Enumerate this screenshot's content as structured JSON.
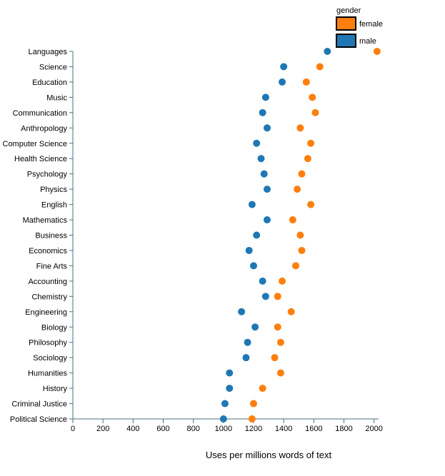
{
  "chart_data": {
    "type": "scatter",
    "title": "",
    "xlabel": "Uses per millions words of text",
    "ylabel": "",
    "xlim": [
      0,
      2030
    ],
    "x_ticks": [
      0,
      200,
      400,
      600,
      800,
      1000,
      1200,
      1400,
      1600,
      1800,
      2000
    ],
    "grid": false,
    "legend": {
      "title": "gender",
      "placement": "top-right",
      "entries": [
        "female",
        "male"
      ]
    },
    "categories": [
      "Languages",
      "Science",
      "Education",
      "Music",
      "Communication",
      "Anthropology",
      "Computer Science",
      "Health Science",
      "Psychology",
      "Physics",
      "English",
      "Mathematics",
      "Business",
      "Economics",
      "Fine Arts",
      "Accounting",
      "Chemistry",
      "Engineering",
      "Biology",
      "Philosophy",
      "Sociology",
      "Humanities",
      "History",
      "Criminal Justice",
      "Political Science"
    ],
    "series": [
      {
        "name": "female",
        "color": "#ff7f0e",
        "values": [
          2020,
          1640,
          1550,
          1590,
          1610,
          1510,
          1580,
          1560,
          1520,
          1490,
          1580,
          1460,
          1510,
          1520,
          1480,
          1390,
          1360,
          1450,
          1360,
          1380,
          1340,
          1380,
          1260,
          1200,
          1190
        ]
      },
      {
        "name": "male",
        "color": "#1f77b4",
        "values": [
          1690,
          1400,
          1390,
          1280,
          1260,
          1290,
          1220,
          1250,
          1270,
          1290,
          1190,
          1290,
          1220,
          1170,
          1200,
          1260,
          1280,
          1120,
          1210,
          1160,
          1150,
          1040,
          1040,
          1010,
          1000
        ]
      }
    ]
  }
}
